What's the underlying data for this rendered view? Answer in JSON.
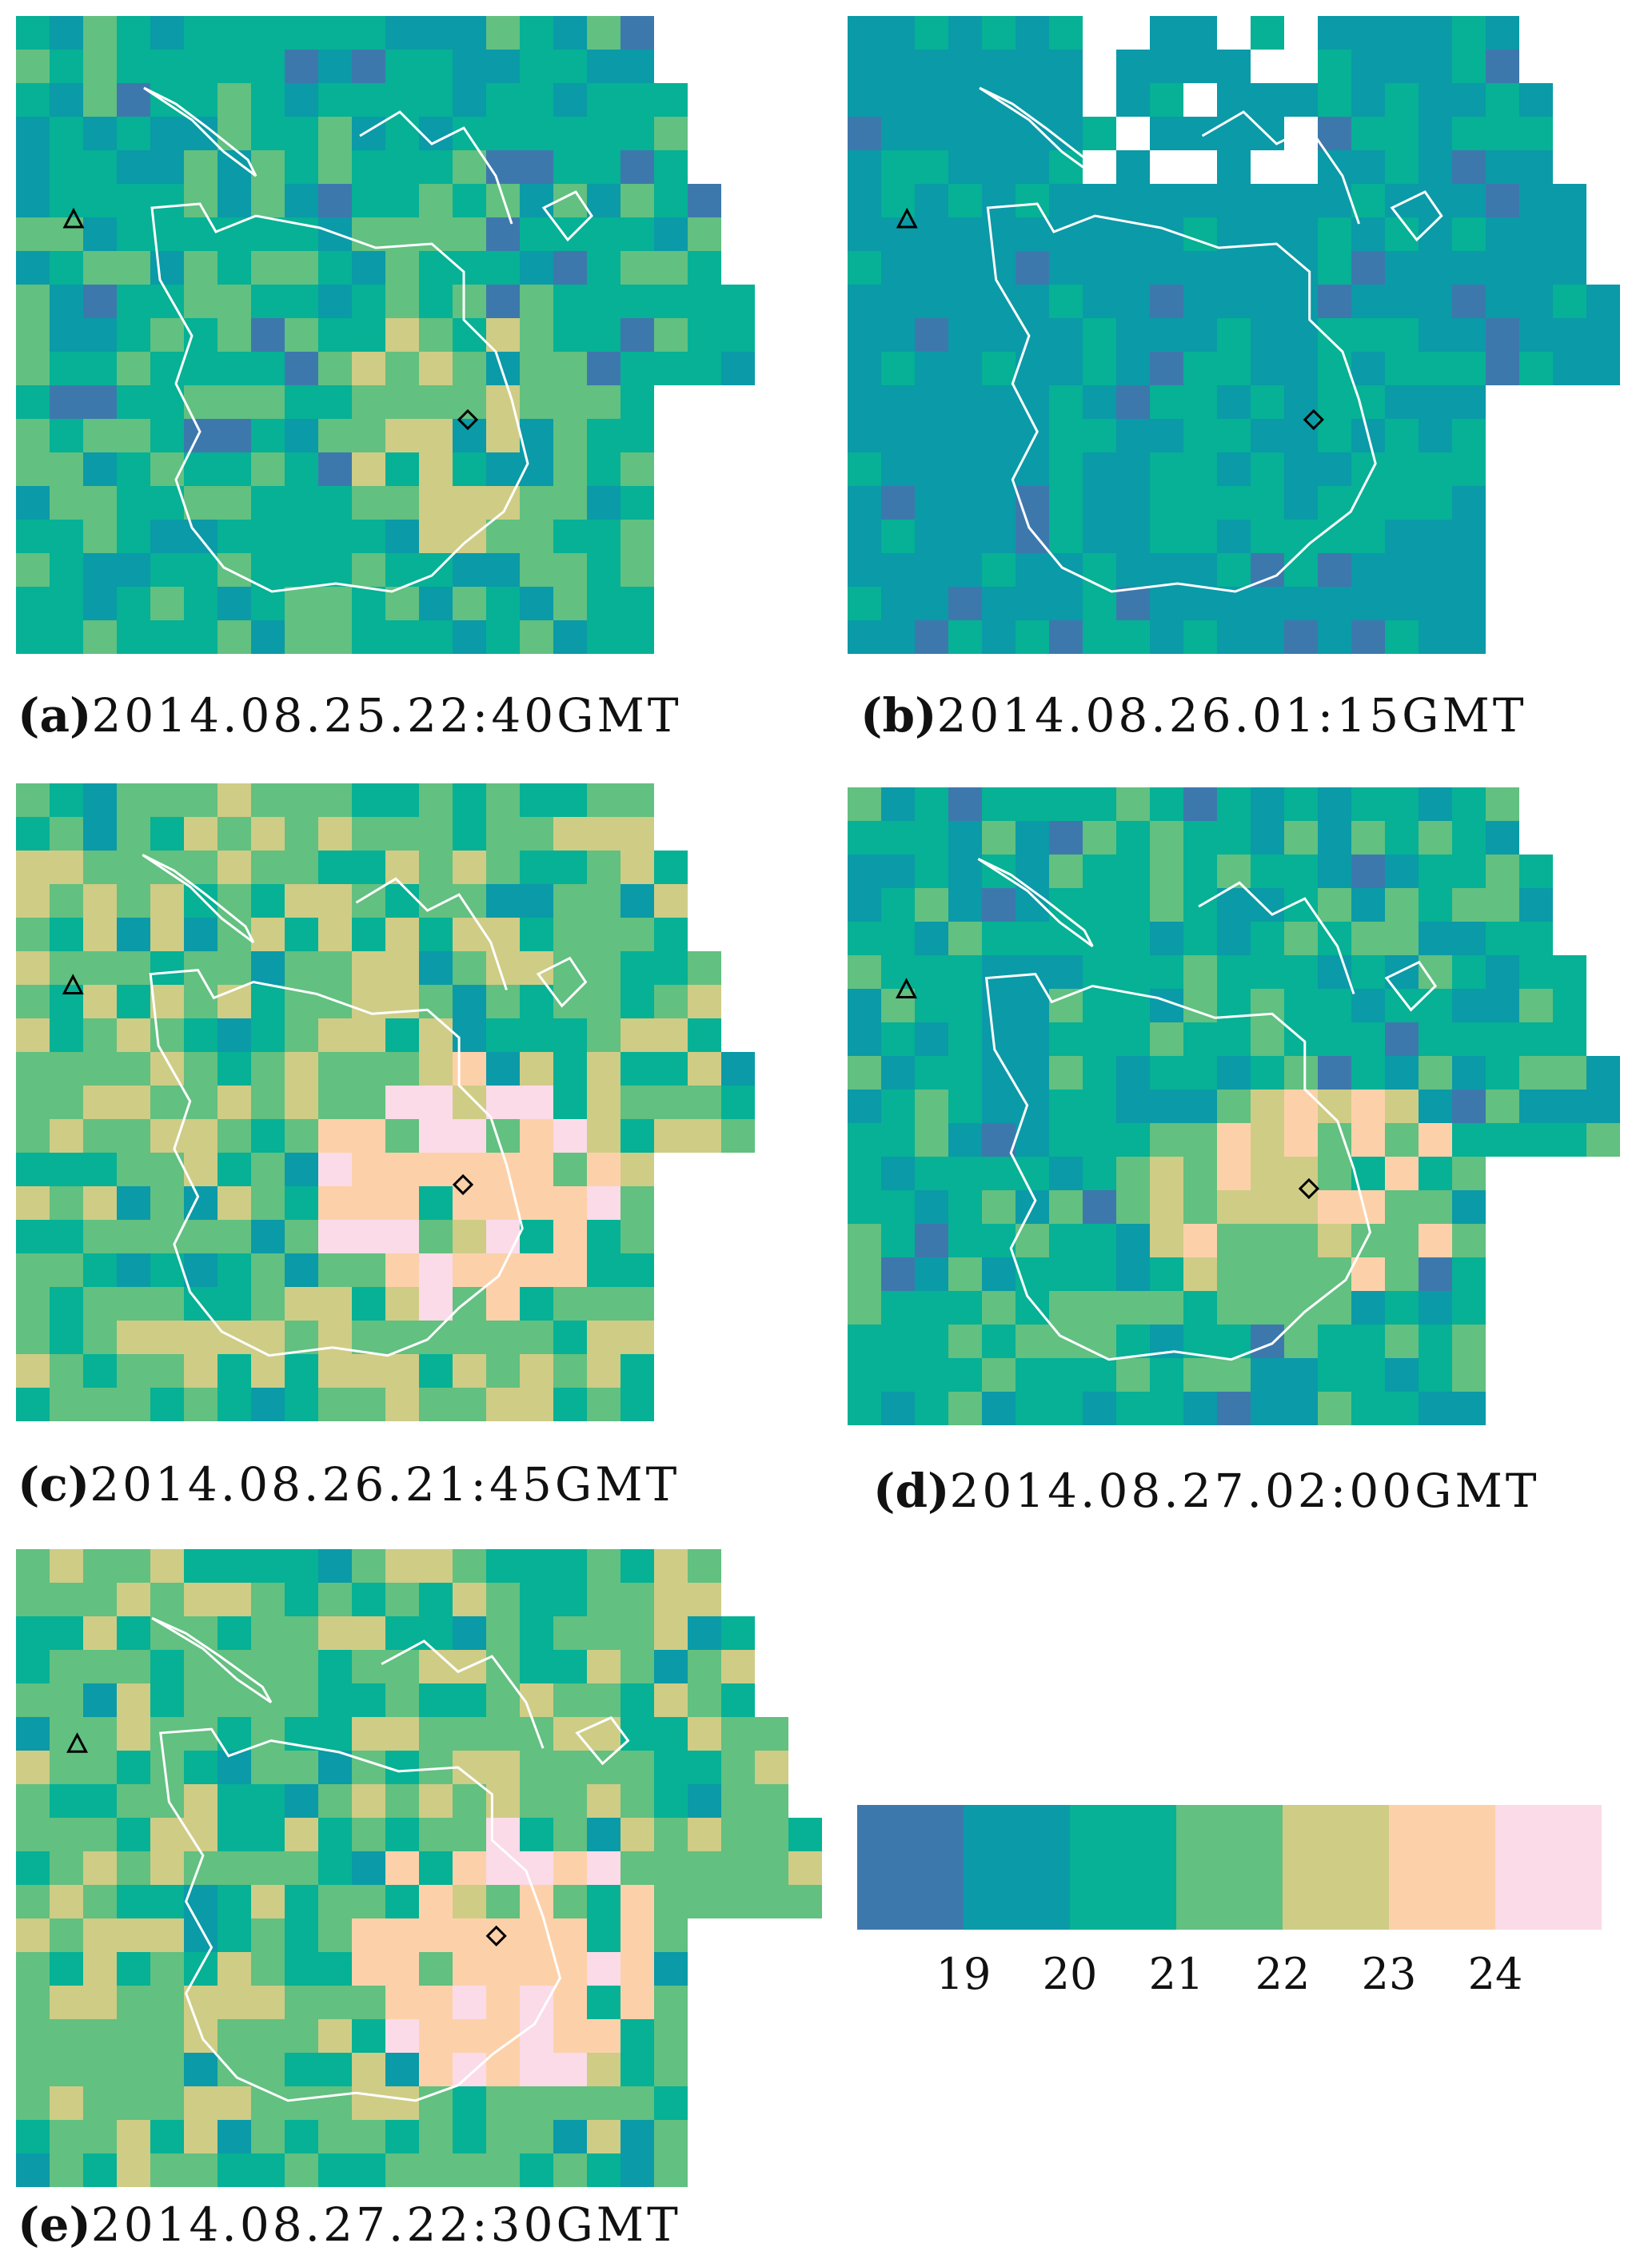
{
  "colors": {
    "bin_19_20": "#3d78ad",
    "bin_20_21": "#0b9aa7",
    "bin_21_22": "#06b195",
    "bin_22_23": "#62c080",
    "bin_23_24": "#cfcc86",
    "bin_24_25": "#fcd1aa",
    "bin_25_plus": "#fbdbe7",
    "boundary": "#ffffff",
    "marker": "#000000"
  },
  "legend": {
    "ticks": [
      "19",
      "20",
      "21",
      "22",
      "23",
      "24"
    ]
  },
  "panels": [
    {
      "id": "a",
      "tag": "(a)",
      "time": "2014.08.25.22:40GMT",
      "dominant": "bin_21_22"
    },
    {
      "id": "b",
      "tag": "(b)",
      "time": "2014.08.26.01:15GMT",
      "dominant": "bin_20_21"
    },
    {
      "id": "c",
      "tag": "(c)",
      "time": "2014.08.26.21:45GMT",
      "dominant": "bin_22_23"
    },
    {
      "id": "d",
      "tag": "(d)",
      "time": "2014.08.27.02:00GMT",
      "dominant": "bin_21_22"
    },
    {
      "id": "e",
      "tag": "(e)",
      "time": "2014.08.27.22:30GMT",
      "dominant": "bin_22_23"
    }
  ],
  "markers": {
    "triangle_icon": "triangle-marker",
    "diamond_icon": "diamond-marker"
  }
}
